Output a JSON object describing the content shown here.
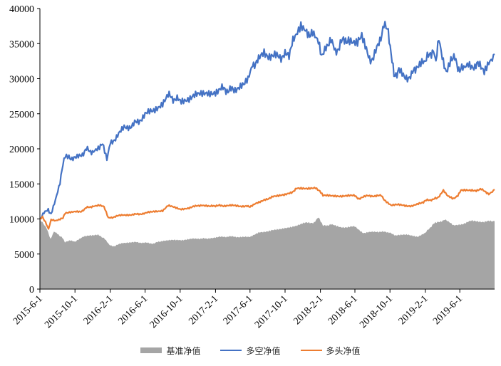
{
  "chart_data": {
    "type": "line",
    "title": "",
    "xlabel": "",
    "ylabel": "",
    "ylim": [
      0,
      40000
    ],
    "yticks": [
      "0",
      "5000",
      "10000",
      "15000",
      "20000",
      "25000",
      "30000",
      "35000",
      "40000"
    ],
    "xticks": [
      "2015-6-1",
      "2015-10-1",
      "2016-2-1",
      "2016-6-1",
      "2016-10-1",
      "2017-2-1",
      "2017-6-1",
      "2017-10-1",
      "2018-2-1",
      "2018-6-1",
      "2018-10-1",
      "2019-2-1",
      "2019-6-1"
    ],
    "x_tick_dates": [
      "2015-06-01",
      "2015-10-01",
      "2016-02-01",
      "2016-06-01",
      "2016-10-01",
      "2017-02-01",
      "2017-06-01",
      "2017-10-01",
      "2018-02-01",
      "2018-06-01",
      "2018-10-01",
      "2019-02-01",
      "2019-06-01"
    ],
    "x_range": [
      "2015-06-01",
      "2019-09-30"
    ],
    "grid": false,
    "legend_position": "bottom",
    "series": [
      {
        "name": "基准净值",
        "kind": "area",
        "color": "#A5A5A5",
        "points": [
          [
            "2015-06-01",
            10000
          ],
          [
            "2015-06-10",
            9500
          ],
          [
            "2015-06-25",
            8700
          ],
          [
            "2015-07-08",
            7100
          ],
          [
            "2015-07-20",
            8200
          ],
          [
            "2015-08-01",
            7900
          ],
          [
            "2015-08-18",
            7300
          ],
          [
            "2015-08-27",
            6700
          ],
          [
            "2015-09-15",
            6900
          ],
          [
            "2015-10-01",
            6700
          ],
          [
            "2015-11-01",
            7500
          ],
          [
            "2015-11-20",
            7700
          ],
          [
            "2015-12-20",
            7700
          ],
          [
            "2016-01-10",
            7300
          ],
          [
            "2016-01-28",
            6300
          ],
          [
            "2016-02-15",
            6100
          ],
          [
            "2016-03-15",
            6600
          ],
          [
            "2016-04-15",
            6700
          ],
          [
            "2016-06-01",
            6600
          ],
          [
            "2016-06-30",
            6500
          ],
          [
            "2016-08-01",
            6900
          ],
          [
            "2016-10-01",
            7000
          ],
          [
            "2016-11-30",
            7200
          ],
          [
            "2017-01-01",
            7200
          ],
          [
            "2017-02-01",
            7400
          ],
          [
            "2017-03-20",
            7500
          ],
          [
            "2017-05-10",
            7400
          ],
          [
            "2017-06-01",
            7500
          ],
          [
            "2017-07-01",
            8000
          ],
          [
            "2017-08-15",
            8400
          ],
          [
            "2017-09-15",
            8500
          ],
          [
            "2017-10-20",
            8800
          ],
          [
            "2017-12-01",
            9400
          ],
          [
            "2018-01-10",
            9500
          ],
          [
            "2018-01-25",
            10200
          ],
          [
            "2018-02-10",
            9000
          ],
          [
            "2018-03-10",
            9200
          ],
          [
            "2018-04-10",
            8800
          ],
          [
            "2018-06-01",
            8900
          ],
          [
            "2018-07-01",
            8000
          ],
          [
            "2018-08-15",
            8200
          ],
          [
            "2018-10-01",
            8100
          ],
          [
            "2018-10-20",
            7600
          ],
          [
            "2018-12-01",
            7800
          ],
          [
            "2019-01-05",
            7500
          ],
          [
            "2019-02-01",
            8000
          ],
          [
            "2019-03-01",
            9300
          ],
          [
            "2019-04-10",
            9900
          ],
          [
            "2019-05-10",
            9100
          ],
          [
            "2019-06-10",
            9300
          ],
          [
            "2019-07-10",
            9700
          ],
          [
            "2019-08-10",
            9600
          ],
          [
            "2019-09-30",
            9700
          ]
        ]
      },
      {
        "name": "多空净值",
        "kind": "line",
        "color": "#4472C4",
        "points": [
          [
            "2015-06-01",
            10000
          ],
          [
            "2015-06-15",
            10800
          ],
          [
            "2015-06-30",
            11300
          ],
          [
            "2015-07-10",
            10700
          ],
          [
            "2015-07-25",
            12600
          ],
          [
            "2015-08-10",
            15000
          ],
          [
            "2015-08-20",
            18000
          ],
          [
            "2015-08-28",
            19200
          ],
          [
            "2015-09-10",
            18800
          ],
          [
            "2015-10-01",
            18600
          ],
          [
            "2015-10-20",
            19000
          ],
          [
            "2015-11-10",
            19900
          ],
          [
            "2015-12-01",
            19600
          ],
          [
            "2015-12-25",
            20300
          ],
          [
            "2016-01-05",
            20600
          ],
          [
            "2016-01-20",
            18400
          ],
          [
            "2016-02-01",
            20800
          ],
          [
            "2016-03-01",
            22000
          ],
          [
            "2016-03-20",
            23000
          ],
          [
            "2016-04-15",
            23300
          ],
          [
            "2016-05-10",
            24000
          ],
          [
            "2016-06-01",
            24800
          ],
          [
            "2016-07-01",
            25600
          ],
          [
            "2016-08-01",
            26600
          ],
          [
            "2016-08-20",
            27600
          ],
          [
            "2016-09-10",
            27100
          ],
          [
            "2016-10-01",
            26900
          ],
          [
            "2016-11-01",
            27300
          ],
          [
            "2016-12-01",
            27600
          ],
          [
            "2017-01-01",
            28000
          ],
          [
            "2017-02-01",
            28200
          ],
          [
            "2017-02-20",
            28600
          ],
          [
            "2017-03-20",
            28300
          ],
          [
            "2017-04-10",
            28600
          ],
          [
            "2017-05-10",
            28900
          ],
          [
            "2017-05-25",
            30000
          ],
          [
            "2017-06-10",
            32000
          ],
          [
            "2017-07-01",
            32600
          ],
          [
            "2017-07-20",
            33700
          ],
          [
            "2017-08-15",
            33200
          ],
          [
            "2017-09-10",
            33100
          ],
          [
            "2017-10-01",
            33300
          ],
          [
            "2017-10-15",
            33600
          ],
          [
            "2017-11-01",
            35600
          ],
          [
            "2017-11-25",
            37400
          ],
          [
            "2017-12-15",
            36600
          ],
          [
            "2018-01-05",
            36300
          ],
          [
            "2018-01-25",
            35000
          ],
          [
            "2018-02-05",
            33000
          ],
          [
            "2018-02-20",
            34800
          ],
          [
            "2018-03-10",
            35300
          ],
          [
            "2018-03-25",
            33700
          ],
          [
            "2018-04-15",
            35200
          ],
          [
            "2018-05-10",
            35700
          ],
          [
            "2018-05-25",
            34900
          ],
          [
            "2018-06-10",
            34900
          ],
          [
            "2018-06-25",
            35900
          ],
          [
            "2018-07-15",
            33500
          ],
          [
            "2018-08-01",
            32400
          ],
          [
            "2018-08-20",
            34600
          ],
          [
            "2018-09-10",
            37600
          ],
          [
            "2018-09-25",
            36500
          ],
          [
            "2018-10-05",
            33800
          ],
          [
            "2018-10-15",
            30300
          ],
          [
            "2018-11-01",
            31200
          ],
          [
            "2018-11-20",
            30000
          ],
          [
            "2018-12-15",
            30500
          ],
          [
            "2019-01-01",
            31800
          ],
          [
            "2019-01-20",
            32300
          ],
          [
            "2019-02-01",
            32300
          ],
          [
            "2019-02-15",
            33600
          ],
          [
            "2019-03-01",
            33900
          ],
          [
            "2019-03-10",
            32900
          ],
          [
            "2019-03-20",
            35400
          ],
          [
            "2019-04-01",
            32700
          ],
          [
            "2019-04-15",
            31200
          ],
          [
            "2019-05-01",
            33000
          ],
          [
            "2019-05-15",
            32800
          ],
          [
            "2019-06-01",
            31100
          ],
          [
            "2019-06-15",
            31600
          ],
          [
            "2019-07-01",
            32100
          ],
          [
            "2019-07-20",
            31800
          ],
          [
            "2019-08-10",
            32000
          ],
          [
            "2019-08-25",
            31300
          ],
          [
            "2019-09-10",
            32600
          ],
          [
            "2019-09-30",
            33500
          ]
        ]
      },
      {
        "name": "多头净值",
        "kind": "line",
        "color": "#ED7D31",
        "points": [
          [
            "2015-06-01",
            10000
          ],
          [
            "2015-06-10",
            10300
          ],
          [
            "2015-06-20",
            9600
          ],
          [
            "2015-07-01",
            8500
          ],
          [
            "2015-07-10",
            9900
          ],
          [
            "2015-07-25",
            9700
          ],
          [
            "2015-08-10",
            9900
          ],
          [
            "2015-08-20",
            10200
          ],
          [
            "2015-08-28",
            10900
          ],
          [
            "2015-09-15",
            10900
          ],
          [
            "2015-10-01",
            11000
          ],
          [
            "2015-10-20",
            11000
          ],
          [
            "2015-11-10",
            11600
          ],
          [
            "2015-12-01",
            11800
          ],
          [
            "2015-12-25",
            12000
          ],
          [
            "2016-01-10",
            11800
          ],
          [
            "2016-01-25",
            10100
          ],
          [
            "2016-02-15",
            10300
          ],
          [
            "2016-03-15",
            10600
          ],
          [
            "2016-04-15",
            10600
          ],
          [
            "2016-06-01",
            10800
          ],
          [
            "2016-07-01",
            11100
          ],
          [
            "2016-08-01",
            11200
          ],
          [
            "2016-08-20",
            11900
          ],
          [
            "2016-09-20",
            11500
          ],
          [
            "2016-10-01",
            11400
          ],
          [
            "2016-11-01",
            11600
          ],
          [
            "2016-12-15",
            12000
          ],
          [
            "2017-01-15",
            11800
          ],
          [
            "2017-02-01",
            11900
          ],
          [
            "2017-03-01",
            11900
          ],
          [
            "2017-04-15",
            11900
          ],
          [
            "2017-05-15",
            11800
          ],
          [
            "2017-06-01",
            11800
          ],
          [
            "2017-06-20",
            12200
          ],
          [
            "2017-07-10",
            12500
          ],
          [
            "2017-08-01",
            12800
          ],
          [
            "2017-08-20",
            13300
          ],
          [
            "2017-10-01",
            13400
          ],
          [
            "2017-10-20",
            13700
          ],
          [
            "2017-11-10",
            14300
          ],
          [
            "2017-12-15",
            14300
          ],
          [
            "2018-01-15",
            14500
          ],
          [
            "2018-01-30",
            14000
          ],
          [
            "2018-02-10",
            13300
          ],
          [
            "2018-04-01",
            13300
          ],
          [
            "2018-06-01",
            13300
          ],
          [
            "2018-06-15",
            12900
          ],
          [
            "2018-07-15",
            13300
          ],
          [
            "2018-09-01",
            13300
          ],
          [
            "2018-09-15",
            12600
          ],
          [
            "2018-10-05",
            12000
          ],
          [
            "2018-11-15",
            12000
          ],
          [
            "2018-12-15",
            11800
          ],
          [
            "2019-01-15",
            12200
          ],
          [
            "2019-02-01",
            12600
          ],
          [
            "2019-03-01",
            12800
          ],
          [
            "2019-03-15",
            13000
          ],
          [
            "2019-04-05",
            14000
          ],
          [
            "2019-04-20",
            13300
          ],
          [
            "2019-05-10",
            12900
          ],
          [
            "2019-05-25",
            13400
          ],
          [
            "2019-06-05",
            14100
          ],
          [
            "2019-07-10",
            14000
          ],
          [
            "2019-08-15",
            14200
          ],
          [
            "2019-09-10",
            13600
          ],
          [
            "2019-09-30",
            14200
          ]
        ]
      }
    ]
  }
}
